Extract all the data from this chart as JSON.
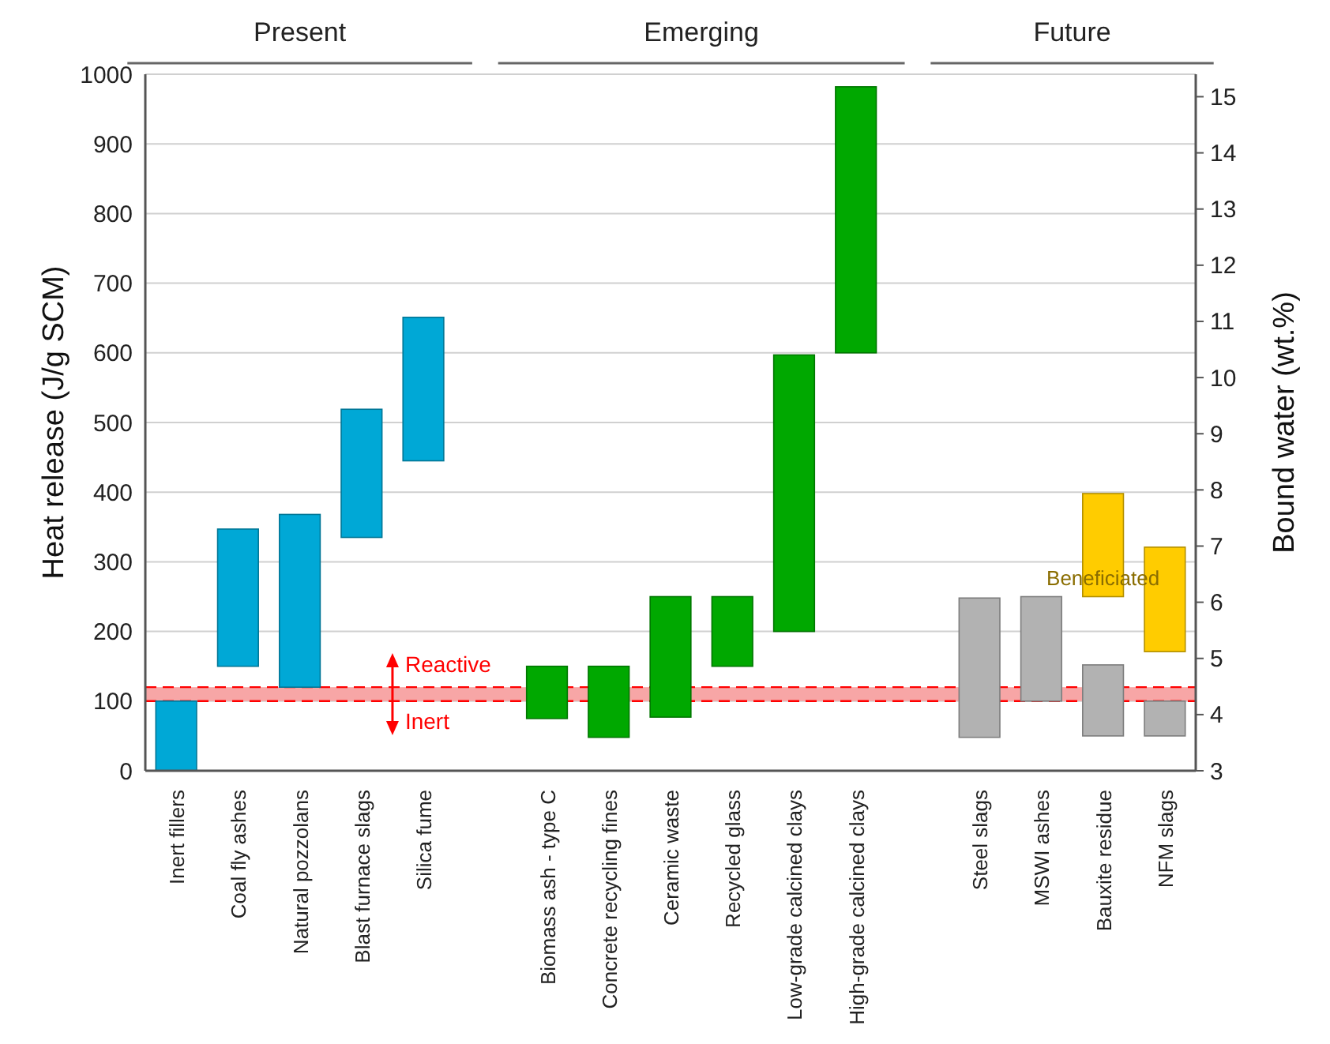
{
  "chart_data": {
    "type": "bar",
    "categories": [
      "Inert fillers",
      "Coal fly ashes",
      "Natural pozzolans",
      "Blast furnace slags",
      "Silica fume",
      null,
      "Biomass ash - type C",
      "Concrete recycling fines",
      "Ceramic waste",
      "Recycled glass",
      "Low-grade calcined clays",
      "High-grade calcined clays",
      null,
      "Steel slags",
      "MSWI ashes",
      "Bauxite residue",
      "NFM slags"
    ],
    "series": [
      {
        "base": [
          0,
          150,
          120,
          335,
          445,
          null,
          75,
          48,
          77,
          150,
          200,
          600,
          null,
          48,
          100,
          50,
          50
        ],
        "values": [
          100,
          197,
          248,
          184,
          206,
          null,
          75,
          102,
          173,
          100,
          397,
          382,
          null,
          200,
          150,
          102,
          50
        ],
        "colors": [
          "#00a8d6",
          "#00a8d6",
          "#00a8d6",
          "#00a8d6",
          "#00a8d6",
          null,
          "#00a800",
          "#00a800",
          "#00a800",
          "#00a800",
          "#00a800",
          "#00a800",
          null,
          "#b2b2b2",
          "#b2b2b2",
          "#b2b2b2",
          "#b2b2b2"
        ]
      },
      {
        "color": "#ffcc00",
        "base": [
          null,
          null,
          null,
          null,
          null,
          null,
          null,
          null,
          null,
          null,
          null,
          null,
          null,
          null,
          null,
          250,
          171
        ],
        "values": [
          null,
          null,
          null,
          null,
          null,
          null,
          null,
          null,
          null,
          null,
          null,
          null,
          null,
          null,
          null,
          148,
          150
        ]
      }
    ],
    "ylabel": "Heat release (J/g SCM)",
    "y2label": "Bound water (wt.%)",
    "ylim": [
      0,
      1000
    ],
    "yticks": [
      0,
      100,
      200,
      300,
      400,
      500,
      600,
      700,
      800,
      900,
      1000
    ],
    "y2lim": [
      3,
      15.4
    ],
    "y2ticks": [
      3,
      4,
      5,
      6,
      7,
      8,
      9,
      10,
      11,
      12,
      13,
      14,
      15
    ],
    "grid": "y",
    "bands": [
      {
        "axis": "y",
        "from": 100,
        "to": 120,
        "color": "#f7a6a6"
      }
    ],
    "ref_lines": [
      {
        "axis": "y",
        "value": 100,
        "color": "#ff0000",
        "line_style": "dashed"
      },
      {
        "axis": "y",
        "value": 120,
        "color": "#ff0000",
        "line_style": "dashed"
      }
    ],
    "annotations": [
      "Present",
      "Emerging",
      "Future",
      "Reactive",
      "Inert",
      "Beneficiated"
    ]
  }
}
